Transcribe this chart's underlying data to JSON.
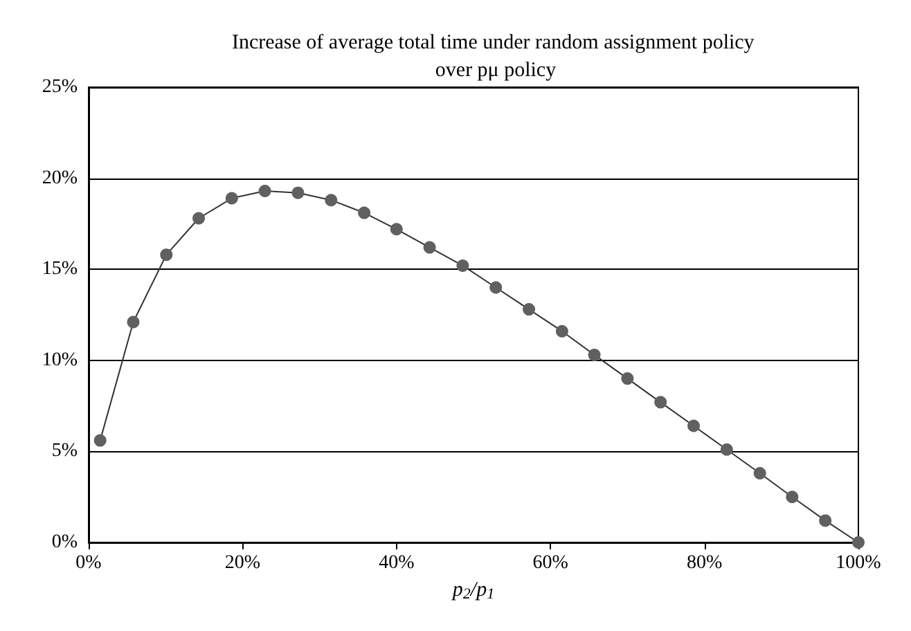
{
  "chart_data": {
    "type": "line",
    "title": "Increase of average total time under random assignment policy over pμ policy",
    "xlabel": "p$_{2}$/p$_{1}$",
    "x": [
      1.5,
      5.8,
      10.1,
      14.3,
      18.6,
      22.9,
      27.2,
      31.5,
      35.8,
      40.0,
      44.3,
      48.6,
      52.9,
      57.2,
      61.5,
      65.7,
      70.0,
      74.3,
      78.6,
      82.9,
      87.2,
      91.4,
      95.7,
      100
    ],
    "series": [
      {
        "color": "#606060",
        "values": [
          5.6,
          12.1,
          15.8,
          17.8,
          18.9,
          19.3,
          19.2,
          18.8,
          18.1,
          17.2,
          16.2,
          15.2,
          14.0,
          12.8,
          11.6,
          10.3,
          9.0,
          7.7,
          6.4,
          5.1,
          3.8,
          2.5,
          1.2,
          0
        ]
      }
    ],
    "xlim": [
      0,
      100
    ],
    "xticks": [
      {
        "value": 0,
        "label": "0%"
      },
      {
        "value": 20,
        "label": "20%"
      },
      {
        "value": 40,
        "label": "40%"
      },
      {
        "value": 60,
        "label": "60%"
      },
      {
        "value": 80,
        "label": "80%"
      },
      {
        "value": 100,
        "label": "100%"
      }
    ],
    "ylim": [
      0,
      25
    ],
    "yticks": [
      {
        "value": 0,
        "label": "0%"
      },
      {
        "value": 5,
        "label": "5%"
      },
      {
        "value": 10,
        "label": "10%"
      },
      {
        "value": 15,
        "label": "15%"
      },
      {
        "value": 20,
        "label": "20%"
      },
      {
        "value": 25,
        "label": "25%"
      }
    ],
    "grid": "y",
    "marker": "circle",
    "line_style": "solid"
  }
}
